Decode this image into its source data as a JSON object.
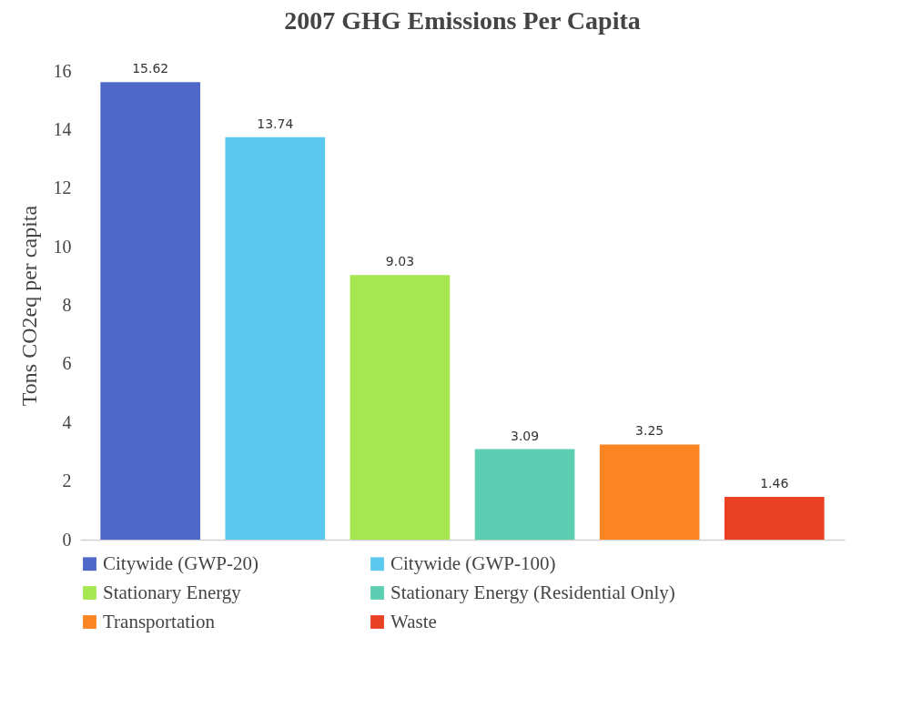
{
  "chart_data": {
    "type": "bar",
    "title": "2007 GHG Emissions Per Capita",
    "ylabel": "Tons CO2eq per capita",
    "categories": [
      null
    ],
    "series": [
      {
        "name": "Citywide (GWP-20)",
        "color": "#4f67c9",
        "values": [
          15.62
        ]
      },
      {
        "name": "Citywide (GWP-100)",
        "color": "#5bc8f0",
        "values": [
          13.74
        ]
      },
      {
        "name": "Stationary Energy",
        "color": "#a6e651",
        "values": [
          9.03
        ]
      },
      {
        "name": "Stationary Energy (Residential Only)",
        "color": "#5ccfb3",
        "values": [
          3.09
        ]
      },
      {
        "name": "Transportation",
        "color": "#fb8423",
        "values": [
          3.25
        ]
      },
      {
        "name": "Waste",
        "color": "#ea4125",
        "values": [
          1.46
        ]
      }
    ],
    "ylim": [
      0,
      16
    ],
    "yticks": [
      0,
      2,
      4,
      6,
      8,
      10,
      12,
      14,
      16
    ],
    "grid": false,
    "legend": "bottom",
    "data_labels": true
  }
}
